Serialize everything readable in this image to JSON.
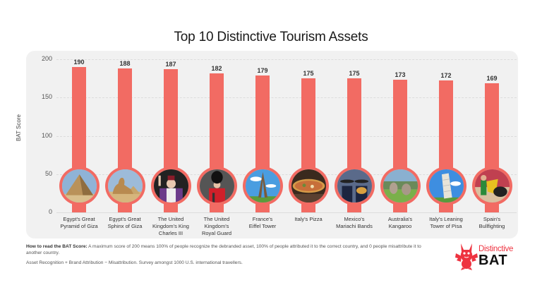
{
  "chart_data": {
    "type": "bar",
    "title": "Top 10 Distinctive Tourism Assets",
    "xlabel": "",
    "ylabel": "BAT Score",
    "ylim": [
      0,
      200
    ],
    "yticks": [
      0,
      50,
      100,
      150,
      200
    ],
    "grid": true,
    "categories": [
      "Egypt's Great Pyramid of Giza",
      "Egypt's Great Sphinx of Giza",
      "The United Kingdom's King Charles III",
      "The United Kingdom's Royal Guard",
      "France's Eiffel Tower",
      "Italy's Pizza",
      "Mexico's Mariachi Bands",
      "Australia's Kangaroo",
      "Italy's Leaning Tower of Pisa",
      "Spain's Bullfighting"
    ],
    "values": [
      190,
      188,
      187,
      182,
      179,
      175,
      175,
      173,
      172,
      169
    ],
    "bar_color": "#f26b63"
  },
  "title": "Top 10 Distinctive Tourism Assets",
  "axis": {
    "ylabel": "BAT Score",
    "ticks": [
      "200",
      "150",
      "100",
      "50",
      "0"
    ]
  },
  "bars": [
    {
      "value": "190",
      "label_lines": [
        "Egypt's Great",
        "Pyramid of Giza"
      ],
      "image": "pyramid-photo"
    },
    {
      "value": "188",
      "label_lines": [
        "Egypt's Great",
        "Sphinx of Giza"
      ],
      "image": "sphinx-photo"
    },
    {
      "value": "187",
      "label_lines": [
        "The United",
        "Kingdom's King",
        "Charles III"
      ],
      "image": "king-charles-photo"
    },
    {
      "value": "182",
      "label_lines": [
        "The United",
        "Kingdom's",
        "Royal Guard"
      ],
      "image": "royal-guard-photo"
    },
    {
      "value": "179",
      "label_lines": [
        "France's",
        "Eiffel Tower"
      ],
      "image": "eiffel-tower-photo"
    },
    {
      "value": "175",
      "label_lines": [
        "Italy's Pizza"
      ],
      "image": "pizza-photo"
    },
    {
      "value": "175",
      "label_lines": [
        "Mexico's",
        "Mariachi Bands"
      ],
      "image": "mariachi-photo"
    },
    {
      "value": "173",
      "label_lines": [
        "Australia's",
        "Kangaroo"
      ],
      "image": "kangaroo-photo"
    },
    {
      "value": "172",
      "label_lines": [
        "Italy's Leaning",
        "Tower of Pisa"
      ],
      "image": "pisa-photo"
    },
    {
      "value": "169",
      "label_lines": [
        "Spain's",
        "Bullfighting"
      ],
      "image": "bullfighting-photo"
    }
  ],
  "footnote": {
    "heading": "How to read the BAT Score:",
    "body": " A maximum score of 200 means 100% of people recognize the debranded asset, 100% of people attributed it to the correct country, and 0 people misattribute it to another country.",
    "formula": "Asset Recognition + Brand Attribution − Misattribution. Survey amongst 1000 U.S. international travellers."
  },
  "logo": {
    "top": "Distinctive",
    "bottom": "BAT"
  }
}
